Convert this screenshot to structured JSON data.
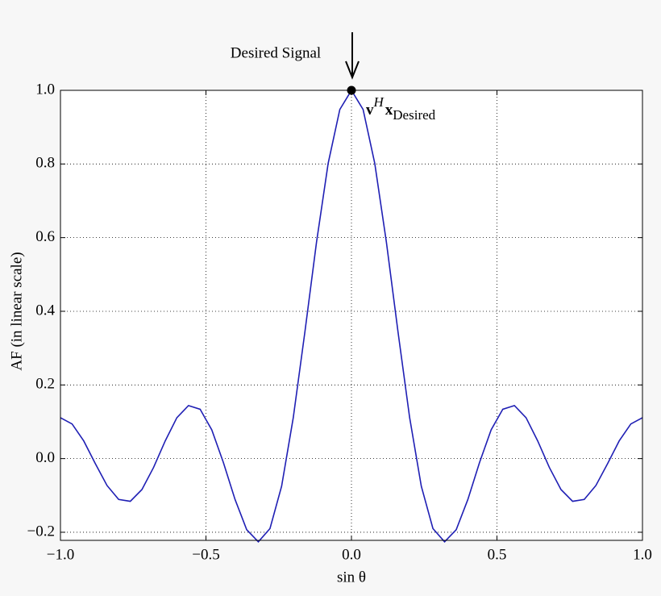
{
  "chart_data": {
    "type": "line",
    "annotation": "Desired Signal",
    "marker": {
      "x": 0,
      "y": 1.0,
      "label": {
        "base": "v",
        "sup": "H",
        "base2": "x",
        "sub": "Desired"
      }
    },
    "xlabel": "sin θ",
    "ylabel": "AF (in linear scale)",
    "x": [
      -1.0,
      -0.96,
      -0.92,
      -0.88,
      -0.84,
      -0.8,
      -0.76,
      -0.72,
      -0.68,
      -0.64,
      -0.6,
      -0.56,
      -0.52,
      -0.48,
      -0.44,
      -0.4,
      -0.36,
      -0.32,
      -0.28,
      -0.24,
      -0.2,
      -0.16,
      -0.12,
      -0.08,
      -0.04,
      0,
      0.04,
      0.08,
      0.12,
      0.16,
      0.2,
      0.24,
      0.28,
      0.32,
      0.36,
      0.4,
      0.44,
      0.48,
      0.52,
      0.56,
      0.6,
      0.64,
      0.68,
      0.72,
      0.76,
      0.8,
      0.84,
      0.88,
      0.92,
      0.96,
      1.0
    ],
    "series": [
      {
        "color": "#1f1fb4",
        "values": [
          0.111,
          0.094,
          0.048,
          -0.014,
          -0.073,
          -0.111,
          -0.116,
          -0.084,
          -0.024,
          0.048,
          0.111,
          0.144,
          0.134,
          0.078,
          -0.011,
          -0.111,
          -0.193,
          -0.226,
          -0.19,
          -0.075,
          0.111,
          0.344,
          0.588,
          0.802,
          0.948,
          1.0,
          0.948,
          0.802,
          0.588,
          0.344,
          0.111,
          -0.075,
          -0.19,
          -0.226,
          -0.193,
          -0.111,
          -0.011,
          0.078,
          0.134,
          0.144,
          0.111,
          0.048,
          -0.024,
          -0.084,
          -0.116,
          -0.111,
          -0.073,
          -0.014,
          0.048,
          0.094,
          0.111
        ]
      }
    ],
    "xlim": [
      -1.0,
      1.0
    ],
    "ylim": [
      -0.222,
      1.0
    ],
    "xticks": [
      {
        "value": -1.0,
        "label": "−1.0"
      },
      {
        "value": -0.5,
        "label": "−0.5"
      },
      {
        "value": 0,
        "label": "0.0"
      },
      {
        "value": 0.5,
        "label": "0.5"
      },
      {
        "value": 1.0,
        "label": "1.0"
      }
    ],
    "yticks": [
      {
        "value": -0.2,
        "label": "−0.2"
      },
      {
        "value": 0,
        "label": "0.0"
      },
      {
        "value": 0.2,
        "label": "0.2"
      },
      {
        "value": 0.4,
        "label": "0.4"
      },
      {
        "value": 0.6,
        "label": "0.6"
      },
      {
        "value": 0.8,
        "label": "0.8"
      },
      {
        "value": 1.0,
        "label": "1.0"
      }
    ],
    "grid": true
  }
}
